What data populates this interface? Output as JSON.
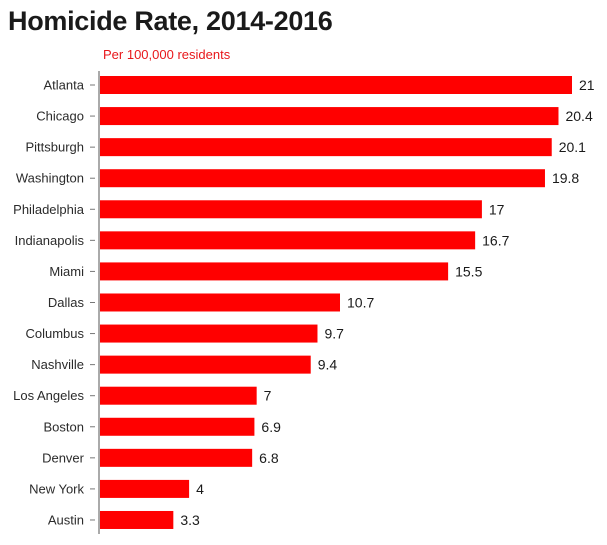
{
  "chart_data": {
    "type": "bar",
    "orientation": "horizontal",
    "title": "Homicide Rate, 2014-2016",
    "subtitle": "Per 100,000 residents",
    "categories": [
      "Atlanta",
      "Chicago",
      "Pittsburgh",
      "Washington",
      "Philadelphia",
      "Indianapolis",
      "Miami",
      "Dallas",
      "Columbus",
      "Nashville",
      "Los Angeles",
      "Boston",
      "Denver",
      "New York",
      "Austin"
    ],
    "values": [
      21,
      20.4,
      20.1,
      19.8,
      17,
      16.7,
      15.5,
      10.7,
      9.7,
      9.4,
      7,
      6.9,
      6.8,
      4,
      3.3
    ],
    "value_labels": [
      "21",
      "20.4",
      "20.1",
      "19.8",
      "17",
      "16.7",
      "15.5",
      "10.7",
      "9.7",
      "9.4",
      "7",
      "6.9",
      "6.8",
      "4",
      "3.3"
    ],
    "xlim": [
      0,
      21
    ],
    "grid": false,
    "bar_color": "#ff0000",
    "subtitle_color": "#e8171b"
  }
}
